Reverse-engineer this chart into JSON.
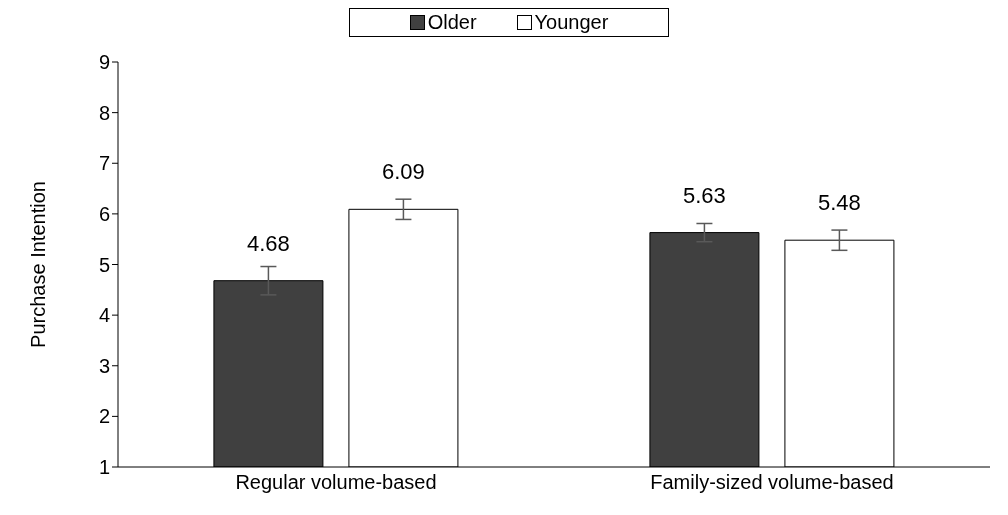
{
  "chart_data": {
    "type": "bar",
    "ylabel": "Purchase Intention",
    "categories": [
      "Regular volume-based",
      "Family-sized volume-based"
    ],
    "series": [
      {
        "name": "Older",
        "color": "#404040",
        "values": [
          4.68,
          5.63
        ],
        "errors": [
          0.28,
          0.18
        ]
      },
      {
        "name": "Younger",
        "color": "#ffffff",
        "values": [
          6.09,
          5.48
        ],
        "errors": [
          0.2,
          0.2
        ]
      }
    ],
    "ylim": [
      1,
      9
    ],
    "yticks": [
      1,
      2,
      3,
      4,
      5,
      6,
      7,
      8,
      9
    ],
    "grid": false,
    "legend": "top",
    "data_labels": true
  }
}
